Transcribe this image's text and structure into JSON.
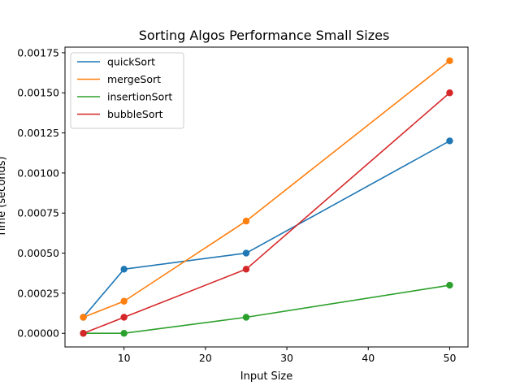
{
  "chart_data": {
    "type": "line",
    "title": "Sorting Algos Performance Small Sizes",
    "xlabel": "Input Size",
    "ylabel": "Time (seconds)",
    "x": [
      5,
      10,
      25,
      50
    ],
    "xlim": [
      2.75,
      52.25
    ],
    "ylim": [
      -8.5e-05,
      0.001785
    ],
    "xticks": [
      10,
      20,
      30,
      40,
      50
    ],
    "xtick_labels": [
      "10",
      "20",
      "30",
      "40",
      "50"
    ],
    "yticks": [
      0,
      0.00025,
      0.0005,
      0.00075,
      0.001,
      0.00125,
      0.0015,
      0.00175
    ],
    "ytick_labels": [
      "0.00000",
      "0.00025",
      "0.00050",
      "0.00075",
      "0.00100",
      "0.00125",
      "0.00150",
      "0.00175"
    ],
    "grid": false,
    "legend_position": "top-left",
    "series": [
      {
        "name": "quickSort",
        "color": "#1f77b4",
        "values": [
          0.0001,
          0.0004,
          0.0005,
          0.0012
        ]
      },
      {
        "name": "mergeSort",
        "color": "#ff7f0e",
        "values": [
          0.0001,
          0.0002,
          0.0007,
          0.0017
        ]
      },
      {
        "name": "insertionSort",
        "color": "#2ca02c",
        "values": [
          0.0,
          0.0,
          0.0001,
          0.0003
        ]
      },
      {
        "name": "bubbleSort",
        "color": "#d62728",
        "values": [
          0.0,
          0.0001,
          0.0004,
          0.0015
        ]
      }
    ]
  }
}
